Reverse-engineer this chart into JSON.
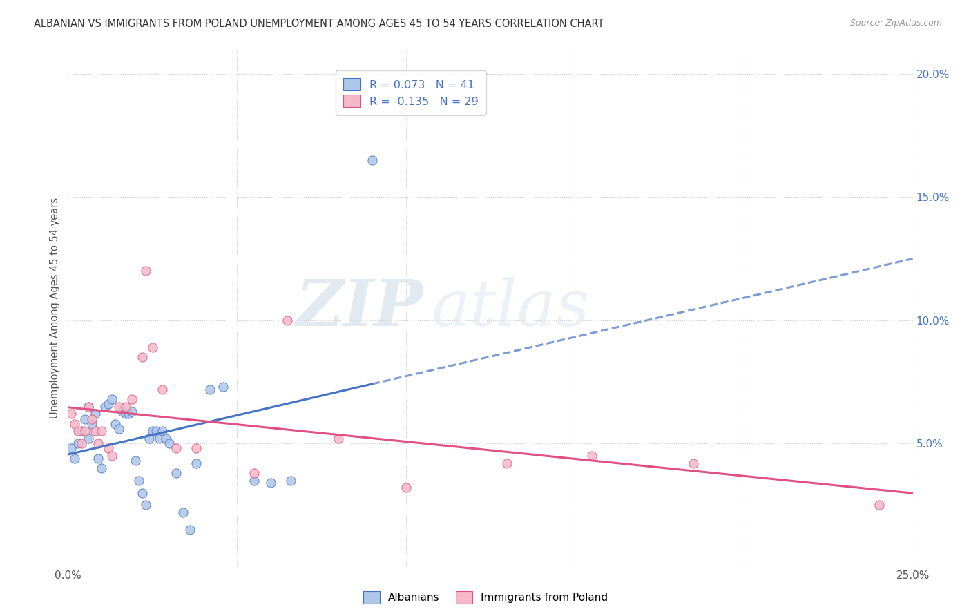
{
  "title": "ALBANIAN VS IMMIGRANTS FROM POLAND UNEMPLOYMENT AMONG AGES 45 TO 54 YEARS CORRELATION CHART",
  "source": "Source: ZipAtlas.com",
  "ylabel": "Unemployment Among Ages 45 to 54 years",
  "right_yticks": [
    "20.0%",
    "15.0%",
    "10.0%",
    "5.0%"
  ],
  "right_ytick_vals": [
    0.2,
    0.15,
    0.1,
    0.05
  ],
  "legend_label1": "Albanians",
  "legend_label2": "Immigrants from Poland",
  "R1": 0.073,
  "N1": 41,
  "R2": -0.135,
  "N2": 29,
  "color1": "#aec6e8",
  "color2": "#f4b8c8",
  "line_color1": "#4472c4",
  "line_color2": "#e05080",
  "watermark_zip": "ZIP",
  "watermark_atlas": "atlas",
  "xlim": [
    0.0,
    0.25
  ],
  "ylim": [
    0.0,
    0.21
  ],
  "albanians_x": [
    0.001,
    0.002,
    0.003,
    0.004,
    0.005,
    0.006,
    0.006,
    0.007,
    0.008,
    0.009,
    0.01,
    0.011,
    0.012,
    0.013,
    0.014,
    0.015,
    0.016,
    0.017,
    0.018,
    0.019,
    0.02,
    0.021,
    0.022,
    0.023,
    0.024,
    0.025,
    0.026,
    0.027,
    0.028,
    0.029,
    0.03,
    0.032,
    0.034,
    0.036,
    0.038,
    0.042,
    0.046,
    0.055,
    0.06,
    0.066,
    0.09
  ],
  "albanians_y": [
    0.048,
    0.044,
    0.05,
    0.055,
    0.06,
    0.065,
    0.052,
    0.058,
    0.062,
    0.044,
    0.04,
    0.065,
    0.066,
    0.068,
    0.058,
    0.056,
    0.063,
    0.062,
    0.062,
    0.063,
    0.043,
    0.035,
    0.03,
    0.025,
    0.052,
    0.055,
    0.055,
    0.052,
    0.055,
    0.052,
    0.05,
    0.038,
    0.022,
    0.015,
    0.042,
    0.072,
    0.073,
    0.035,
    0.034,
    0.035,
    0.165
  ],
  "poland_x": [
    0.001,
    0.002,
    0.003,
    0.004,
    0.005,
    0.006,
    0.007,
    0.008,
    0.009,
    0.01,
    0.012,
    0.013,
    0.015,
    0.017,
    0.019,
    0.022,
    0.023,
    0.025,
    0.028,
    0.032,
    0.038,
    0.055,
    0.065,
    0.08,
    0.1,
    0.13,
    0.155,
    0.185,
    0.24
  ],
  "poland_y": [
    0.062,
    0.058,
    0.055,
    0.05,
    0.055,
    0.065,
    0.06,
    0.055,
    0.05,
    0.055,
    0.048,
    0.045,
    0.065,
    0.065,
    0.068,
    0.085,
    0.12,
    0.089,
    0.072,
    0.048,
    0.048,
    0.038,
    0.1,
    0.052,
    0.032,
    0.042,
    0.045,
    0.042,
    0.025
  ]
}
